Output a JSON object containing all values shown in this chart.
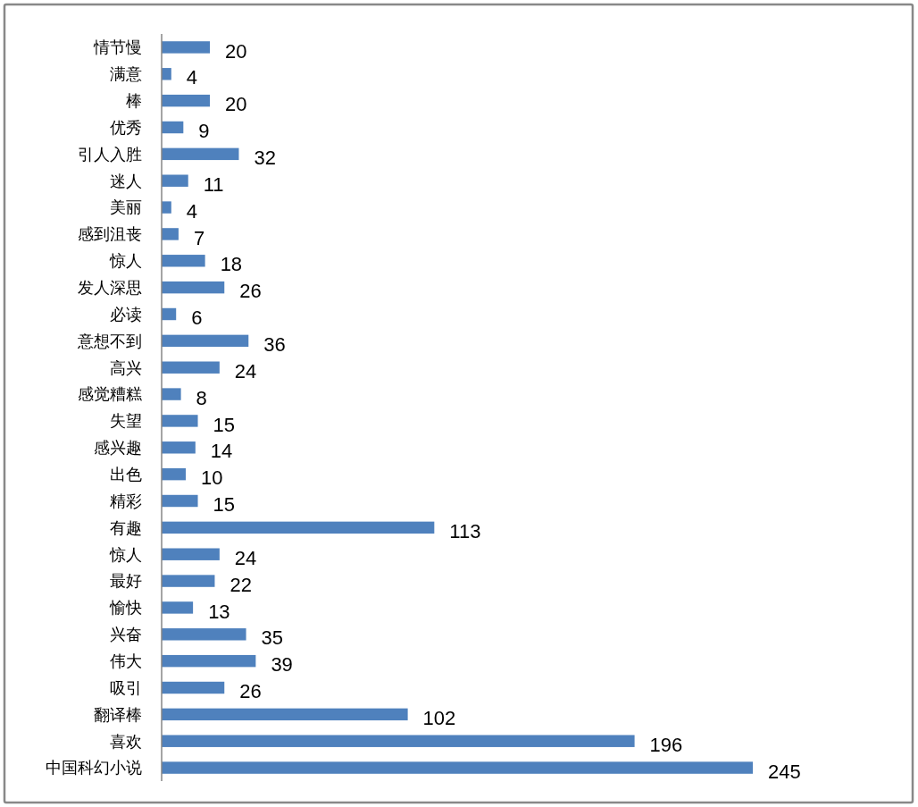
{
  "chart_data": {
    "type": "bar",
    "orientation": "horizontal",
    "data_labels": true,
    "color": "#4f81bd",
    "categories": [
      "情节慢",
      "满意",
      "棒",
      "优秀",
      "引人入胜",
      "迷人",
      "美丽",
      "感到沮丧",
      "惊人",
      "发人深思",
      "必读",
      "意想不到",
      "高兴",
      "感觉糟糕",
      "失望",
      "感兴趣",
      "出色",
      "精彩",
      "有趣",
      "惊人",
      "最好",
      "愉快",
      "兴奋",
      "伟大",
      "吸引",
      "翻译棒",
      "喜欢",
      "中国科幻小说"
    ],
    "values": [
      20,
      4,
      20,
      9,
      32,
      11,
      4,
      7,
      18,
      26,
      6,
      36,
      24,
      8,
      15,
      14,
      10,
      15,
      113,
      24,
      22,
      13,
      35,
      39,
      26,
      102,
      196,
      245
    ]
  }
}
